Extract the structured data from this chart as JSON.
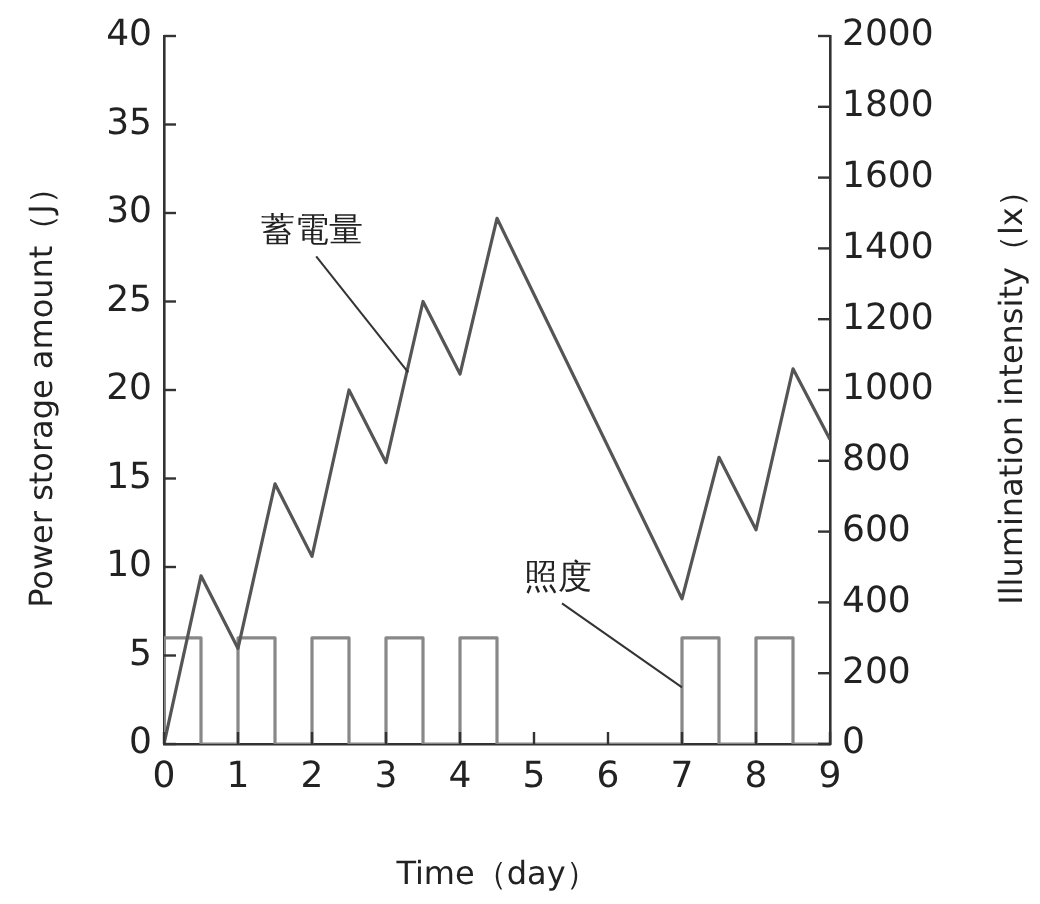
{
  "chart_data": {
    "type": "line",
    "xlabel": "Time（day）",
    "ylabel": "Power storage amount（J）",
    "y2label": "Illumination intensity（lx）",
    "xlim": [
      0,
      9
    ],
    "xticks": [
      0,
      1,
      2,
      3,
      4,
      5,
      6,
      7,
      8,
      9
    ],
    "ylim": [
      0,
      40
    ],
    "yticks": [
      0,
      5,
      10,
      15,
      20,
      25,
      30,
      35,
      40
    ],
    "y2lim": [
      0,
      2000
    ],
    "y2ticks": [
      0,
      200,
      400,
      600,
      800,
      1000,
      1200,
      1400,
      1600,
      1800,
      2000
    ],
    "marker": "none",
    "grid": false,
    "legend": false,
    "series": [
      {
        "color": "#555555",
        "x": [
          0,
          0.5,
          1,
          1.5,
          2,
          2.5,
          3,
          3.5,
          4,
          4.5,
          7,
          7.5,
          8,
          8.5,
          9
        ],
        "values": [
          0,
          9.5,
          5.4,
          14.7,
          10.6,
          20,
          15.9,
          25,
          20.9,
          29.7,
          8.2,
          16.2,
          12.1,
          21.2,
          17.2
        ]
      },
      {
        "axis": "y2",
        "color": "#888888",
        "x": [
          0,
          0,
          0.5,
          0.5,
          1,
          1,
          1.5,
          1.5,
          2,
          2,
          2.5,
          2.5,
          3,
          3,
          3.5,
          3.5,
          4,
          4,
          4.5,
          4.5,
          7,
          7,
          7.5,
          7.5,
          8,
          8,
          8.5,
          8.5,
          9
        ],
        "values": [
          0,
          300,
          300,
          0,
          0,
          300,
          300,
          0,
          0,
          300,
          300,
          0,
          0,
          300,
          300,
          0,
          0,
          300,
          300,
          0,
          0,
          300,
          300,
          0,
          0,
          300,
          300,
          0,
          0
        ]
      }
    ],
    "annotations": [
      {
        "text": "蓄電量",
        "x": 3.3,
        "y": 21
      },
      {
        "text": "照度",
        "x": 7,
        "y": 3.2
      }
    ]
  }
}
